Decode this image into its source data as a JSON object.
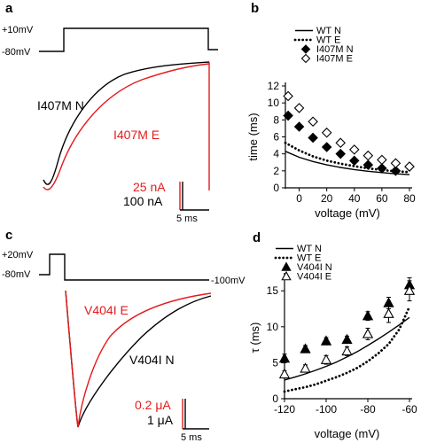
{
  "panels": {
    "a": "a",
    "b": "b",
    "c": "c",
    "d": "d"
  },
  "panel_a": {
    "protocol_high": "+10mV",
    "protocol_low": "-80mV",
    "trace_black_label": "I407M N",
    "trace_red_label": "I407M E",
    "scale_red": "25 nA",
    "scale_black": "100 nA",
    "scale_time": "5 ms"
  },
  "panel_c": {
    "protocol_high": "+20mV",
    "protocol_low": "-80mV",
    "protocol_tail": "-100mV",
    "trace_red_label": "V404I E",
    "trace_black_label": "V404I N",
    "scale_red": "0.2 μA",
    "scale_black": "1 μA",
    "scale_time": "5 ms"
  },
  "colors": {
    "red": "#e41a1c",
    "black": "#000000"
  },
  "chart_data": [
    {
      "panel": "b",
      "type": "scatter",
      "xlabel": "voltage (mV)",
      "ylabel": "time (ms)",
      "xlim": [
        -10,
        80
      ],
      "ylim": [
        0,
        12
      ],
      "xticks": [
        0,
        20,
        40,
        60,
        80
      ],
      "yticks": [
        0,
        2,
        4,
        6,
        8,
        10,
        12
      ],
      "legend_position": "top-right",
      "series": [
        {
          "name": "WT N",
          "style": "solid-line",
          "x": [
            -10,
            0,
            10,
            20,
            30,
            40,
            50,
            60,
            70,
            80
          ],
          "y": [
            4.3,
            3.6,
            3.1,
            2.7,
            2.4,
            2.15,
            1.95,
            1.8,
            1.65,
            1.55
          ]
        },
        {
          "name": "WT E",
          "style": "dotted-line",
          "x": [
            -10,
            0,
            10,
            20,
            30,
            40,
            50,
            60,
            70,
            80
          ],
          "y": [
            5.3,
            4.4,
            3.7,
            3.2,
            2.85,
            2.55,
            2.3,
            2.1,
            1.95,
            1.85
          ]
        },
        {
          "name": "I407M N",
          "style": "filled-diamond",
          "x": [
            -8,
            0,
            10,
            20,
            30,
            40,
            50,
            60,
            70,
            80
          ],
          "y": [
            8.5,
            7.2,
            5.9,
            4.8,
            4.0,
            3.2,
            2.7,
            2.3,
            2.0,
            2.5
          ]
        },
        {
          "name": "I407M E",
          "style": "open-diamond",
          "x": [
            -8,
            0,
            10,
            20,
            30,
            40,
            50,
            60,
            70,
            80
          ],
          "y": [
            10.8,
            9.4,
            7.8,
            6.5,
            5.3,
            4.5,
            3.8,
            3.3,
            2.9,
            2.5
          ]
        }
      ]
    },
    {
      "panel": "d",
      "type": "scatter",
      "xlabel": "voltage (mV)",
      "ylabel": "τ (ms)",
      "xlim": [
        -120,
        -60
      ],
      "ylim": [
        0,
        17
      ],
      "xticks": [
        -120,
        -100,
        -80,
        -60
      ],
      "yticks": [
        0,
        5,
        10,
        15
      ],
      "legend_position": "top-left",
      "series": [
        {
          "name": "WT N",
          "style": "solid-line",
          "x": [
            -120,
            -115,
            -110,
            -105,
            -100,
            -95,
            -90,
            -85,
            -80,
            -75,
            -70,
            -65,
            -60
          ],
          "y": [
            2.6,
            3.0,
            3.45,
            3.95,
            4.5,
            5.1,
            5.8,
            6.55,
            7.4,
            8.3,
            9.25,
            10.25,
            11.3
          ]
        },
        {
          "name": "WT E",
          "style": "dotted-line",
          "x": [
            -120,
            -115,
            -110,
            -105,
            -100,
            -95,
            -90,
            -85,
            -80,
            -75,
            -70,
            -65,
            -60
          ],
          "y": [
            1.0,
            1.3,
            1.6,
            2.0,
            2.5,
            3.0,
            3.6,
            4.3,
            5.2,
            6.3,
            7.6,
            9.6,
            12.8
          ]
        },
        {
          "name": "V404I N",
          "style": "filled-triangle",
          "x": [
            -120,
            -110,
            -100,
            -90,
            -80,
            -70,
            -60
          ],
          "y": [
            5.6,
            6.9,
            8.0,
            8.2,
            11.5,
            13.3,
            15.8
          ],
          "err": [
            0.6,
            0.5,
            0.5,
            0.5,
            0.6,
            0.8,
            1.0
          ]
        },
        {
          "name": "V404I E",
          "style": "open-triangle",
          "x": [
            -120,
            -110,
            -100,
            -90,
            -80,
            -70,
            -60
          ],
          "y": [
            3.4,
            4.2,
            5.4,
            6.6,
            9.0,
            11.8,
            15.0
          ],
          "err": [
            0.5,
            0.5,
            0.6,
            0.6,
            0.8,
            1.2,
            1.4
          ]
        }
      ]
    }
  ]
}
